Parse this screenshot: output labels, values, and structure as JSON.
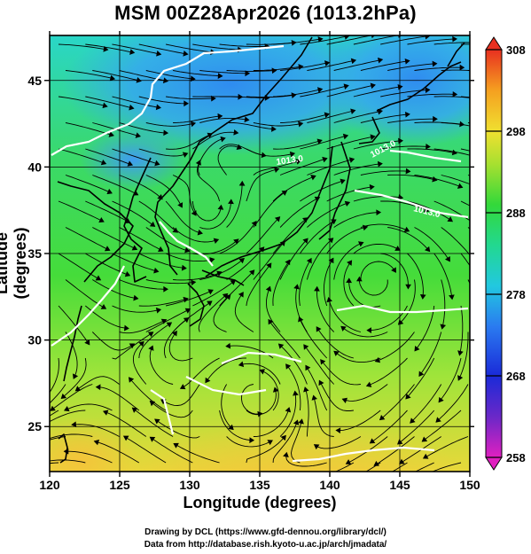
{
  "title": "MSM 00Z28Apr2026 (1013.2hPa)",
  "xlabel": "Longitude (degrees)",
  "ylabel": "Latitude  (degrees)",
  "credits": [
    "Drawing by DCL (https://www.gfd-dennou.org/library/dcl/)",
    "Data from http://database.rish.kyoto-u.ac.jp/arch/jmadata/"
  ],
  "chart_data": {
    "type": "heatmap",
    "xlim": [
      120,
      150
    ],
    "ylim": [
      22.4,
      47.6
    ],
    "x_ticks": [
      120,
      125,
      130,
      135,
      140,
      145,
      150
    ],
    "y_ticks": [
      25,
      30,
      35,
      40,
      45
    ],
    "grid": true,
    "colorbar": {
      "min": 258,
      "max": 308,
      "ticks": [
        308,
        298,
        288,
        278,
        268,
        258
      ]
    },
    "contour_labels": [
      "1013.0",
      "1013.0",
      "1013.0"
    ],
    "colors": {
      "cold": "#3aa6f2",
      "cool": "#2ad6c8",
      "mild": "#3ad94a",
      "warm": "#c8e83a",
      "hot": "#f2d23a"
    }
  }
}
